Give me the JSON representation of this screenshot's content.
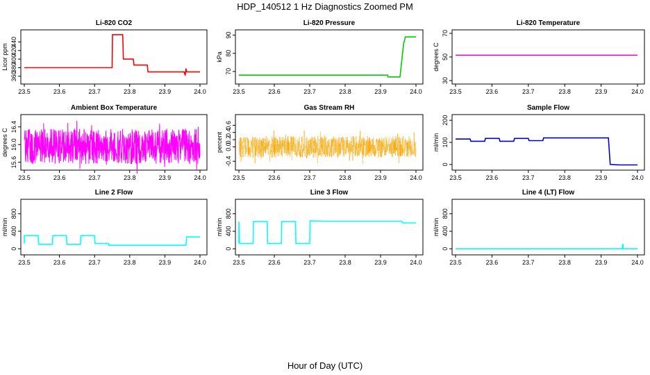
{
  "figure": {
    "title": "HDP_140512  1 Hz Diagnostics Zoomed PM",
    "xlabel": "Hour of Day (UTC)"
  },
  "chart_data": [
    {
      "type": "line",
      "title": "Li-820 CO2",
      "ylabel": "Licor ppm",
      "color": "#ff0000",
      "xlim": [
        23.5,
        24.0
      ],
      "xticks": [
        "23.5",
        "23.6",
        "23.7",
        "23.8",
        "23.9",
        "24.0"
      ],
      "ylim": [
        350,
        460
      ],
      "yticks": [
        "360",
        "380",
        "400",
        "420",
        "440"
      ],
      "series": [
        {
          "x": [
            23.5,
            23.75,
            23.751,
            23.76,
            23.78,
            23.782,
            23.81,
            23.812,
            23.85,
            23.852,
            23.955,
            23.958,
            23.96,
            23.962,
            24.0
          ],
          "y": [
            380,
            380,
            457,
            457,
            457,
            400,
            400,
            386,
            386,
            370,
            370,
            362,
            378,
            370,
            370
          ]
        }
      ]
    },
    {
      "type": "line",
      "title": "Li-820 Pressure",
      "ylabel": "kPa",
      "color": "#00cc00",
      "xlim": [
        23.5,
        24.0
      ],
      "xticks": [
        "23.5",
        "23.6",
        "23.7",
        "23.8",
        "23.9",
        "24.0"
      ],
      "ylim": [
        65,
        91
      ],
      "yticks": [
        "70",
        "80",
        "90"
      ],
      "series": [
        {
          "x": [
            23.5,
            23.92,
            23.921,
            23.955,
            23.965,
            23.97,
            23.98,
            24.0
          ],
          "y": [
            68,
            68,
            67,
            67,
            85,
            89,
            89,
            89
          ]
        }
      ]
    },
    {
      "type": "line",
      "title": "Li-820 Temperature",
      "ylabel": "degrees C",
      "color": "#cc00cc",
      "xlim": [
        23.5,
        24.0
      ],
      "xticks": [
        "23.5",
        "23.6",
        "23.7",
        "23.8",
        "23.9",
        "24.0"
      ],
      "ylim": [
        30,
        70
      ],
      "yticks": [
        "30",
        "50",
        "70"
      ],
      "series": [
        {
          "x": [
            23.5,
            24.0
          ],
          "y": [
            51.5,
            51.5
          ]
        }
      ]
    },
    {
      "type": "line",
      "title": "Ambient Box Temperature",
      "ylabel": "degrees C",
      "color": "#ff00ff",
      "xlim": [
        23.5,
        24.0
      ],
      "xticks": [
        "23.5",
        "23.6",
        "23.7",
        "23.8",
        "23.9",
        "24.0"
      ],
      "ylim": [
        15.5,
        16.6
      ],
      "yticks": [
        "15.6",
        "16.0",
        "16.4"
      ],
      "noise": {
        "center": 15.96,
        "amplitude": 0.4
      },
      "series": [
        {
          "x": [
            23.5,
            24.0
          ],
          "y": [
            15.96,
            15.96
          ]
        }
      ]
    },
    {
      "type": "scatter",
      "title": "Gas Stream RH",
      "ylabel": "percent",
      "color": "#ffa500",
      "xlim": [
        23.5,
        24.0
      ],
      "xticks": [
        "23.5",
        "23.6",
        "23.7",
        "23.8",
        "23.9",
        "24.0"
      ],
      "ylim": [
        -0.55,
        0.8
      ],
      "yticks": [
        "-0.4",
        "0.0",
        "0.2",
        "0.4",
        "0.6"
      ],
      "noise": {
        "center": 0.0,
        "amplitude": 0.3
      },
      "series": [
        {
          "x": [
            23.5,
            24.0
          ],
          "y": [
            0.0,
            0.0
          ]
        }
      ]
    },
    {
      "type": "line",
      "title": "Sample Flow",
      "ylabel": "ml/min",
      "color": "#0000cc",
      "xlim": [
        23.5,
        24.0
      ],
      "xticks": [
        "23.5",
        "23.6",
        "23.7",
        "23.8",
        "23.9",
        "24.0"
      ],
      "ylim": [
        -10,
        210
      ],
      "yticks": [
        "0",
        "100",
        "200"
      ],
      "series": [
        {
          "x": [
            23.5,
            23.54,
            23.542,
            23.58,
            23.582,
            23.62,
            23.622,
            23.66,
            23.662,
            23.7,
            23.702,
            23.74,
            23.742,
            23.92,
            23.925,
            23.95,
            24.0
          ],
          "y": [
            115,
            115,
            105,
            105,
            118,
            118,
            105,
            105,
            118,
            118,
            108,
            108,
            120,
            120,
            0,
            -2,
            -2
          ]
        }
      ]
    },
    {
      "type": "line",
      "title": "Line 2 Flow",
      "ylabel": "ml/min",
      "color": "#00ffff",
      "xlim": [
        23.5,
        24.0
      ],
      "xticks": [
        "23.5",
        "23.6",
        "23.7",
        "23.8",
        "23.9",
        "24.0"
      ],
      "ylim": [
        -60,
        1050
      ],
      "yticks": [
        "0",
        "400",
        "800"
      ],
      "series": [
        {
          "x": [
            23.5,
            23.5,
            23.54,
            23.541,
            23.58,
            23.581,
            23.62,
            23.621,
            23.66,
            23.661,
            23.7,
            23.701,
            23.74,
            23.741,
            23.96,
            23.962,
            24.0
          ],
          "y": [
            120,
            300,
            300,
            100,
            100,
            300,
            300,
            100,
            100,
            300,
            300,
            120,
            120,
            80,
            80,
            270,
            270
          ]
        }
      ]
    },
    {
      "type": "line",
      "title": "Line 3 Flow",
      "ylabel": "ml/min",
      "color": "#00ffff",
      "xlim": [
        23.5,
        24.0
      ],
      "xticks": [
        "23.5",
        "23.6",
        "23.7",
        "23.8",
        "23.9",
        "24.0"
      ],
      "ylim": [
        -60,
        1050
      ],
      "yticks": [
        "0",
        "400",
        "800"
      ],
      "series": [
        {
          "x": [
            23.5,
            23.5,
            23.502,
            23.54,
            23.541,
            23.58,
            23.581,
            23.62,
            23.621,
            23.66,
            23.661,
            23.7,
            23.701,
            23.74,
            23.96,
            23.962,
            24.0
          ],
          "y": [
            120,
            620,
            120,
            120,
            620,
            620,
            120,
            120,
            620,
            620,
            120,
            120,
            640,
            630,
            630,
            590,
            590
          ]
        }
      ]
    },
    {
      "type": "line",
      "title": "Line 4 (LT) Flow",
      "ylabel": "ml/min",
      "color": "#00ffff",
      "xlim": [
        23.5,
        24.0
      ],
      "xticks": [
        "23.5",
        "23.6",
        "23.7",
        "23.8",
        "23.9",
        "24.0"
      ],
      "ylim": [
        -60,
        1050
      ],
      "yticks": [
        "0",
        "400",
        "800"
      ],
      "series": [
        {
          "x": [
            23.5,
            23.958,
            23.959,
            23.96,
            23.961,
            24.0
          ],
          "y": [
            0,
            0,
            100,
            100,
            0,
            0
          ]
        }
      ]
    }
  ]
}
